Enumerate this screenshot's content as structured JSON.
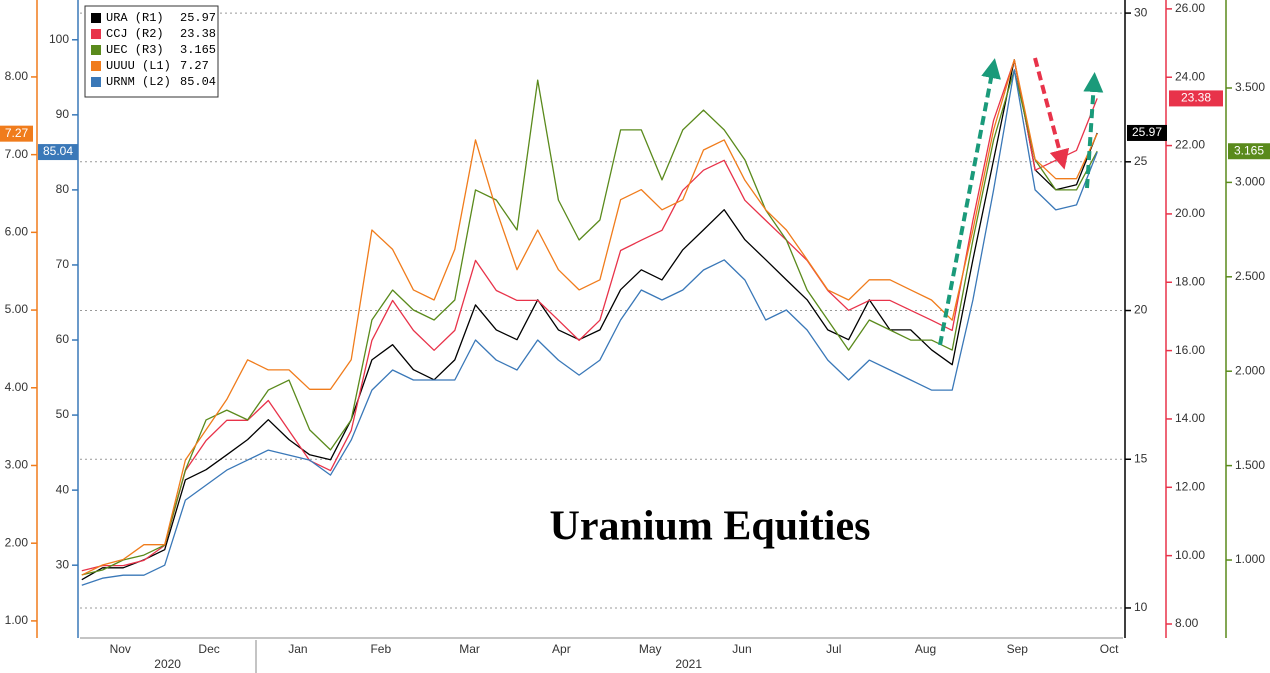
{
  "chart_data": {
    "type": "line",
    "annotation": "Uranium Equities",
    "x": [
      3,
      10,
      17,
      24,
      31,
      38,
      45,
      52,
      59,
      66,
      73,
      80,
      87,
      94,
      101,
      108,
      115,
      122,
      129,
      136,
      143,
      150,
      157,
      164,
      171,
      178,
      185,
      192,
      199,
      206,
      213,
      220,
      227,
      234,
      241,
      248,
      255,
      262,
      269,
      276,
      283,
      290,
      297,
      304,
      311,
      318,
      325,
      332,
      339,
      346
    ],
    "xlim": [
      2.4,
      354.7
    ],
    "xticks": [
      {
        "value": 16,
        "label": "Nov"
      },
      {
        "value": 46,
        "label": "Dec"
      },
      {
        "value": 76,
        "label": "Jan"
      },
      {
        "value": 104,
        "label": "Feb"
      },
      {
        "value": 134,
        "label": "Mar"
      },
      {
        "value": 165,
        "label": "Apr"
      },
      {
        "value": 195,
        "label": "May"
      },
      {
        "value": 226,
        "label": "Jun"
      },
      {
        "value": 257,
        "label": "Jul"
      },
      {
        "value": 288,
        "label": "Aug"
      },
      {
        "value": 319,
        "label": "Sep"
      },
      {
        "value": 350,
        "label": "Oct"
      }
    ],
    "year_labels": [
      {
        "value": 32,
        "label": "2020"
      },
      {
        "value": 208,
        "label": "2021"
      }
    ],
    "grid": true,
    "grid_axis": "R1",
    "axes": {
      "L1": {
        "color": "#f07c1c",
        "ylim": [
          0.78,
          8.99
        ],
        "yticks": [
          {
            "value": 1,
            "label": "1.00"
          },
          {
            "value": 2,
            "label": "2.00"
          },
          {
            "value": 3,
            "label": "3.00"
          },
          {
            "value": 4,
            "label": "4.00"
          },
          {
            "value": 5,
            "label": "5.00"
          },
          {
            "value": 6,
            "label": "6.00"
          },
          {
            "value": 7,
            "label": "7.00"
          },
          {
            "value": 8,
            "label": "8.00"
          }
        ]
      },
      "L2": {
        "color": "#3a78b8",
        "ylim": [
          20.3,
          105.3
        ],
        "yticks": [
          30,
          40,
          50,
          60,
          70,
          80,
          90,
          100
        ]
      },
      "R1": {
        "color": "#000000",
        "ylim": [
          8.99,
          30.44
        ],
        "yticks": [
          10,
          15,
          20,
          25,
          30
        ]
      },
      "R2": {
        "color": "#e8334a",
        "ylim": [
          7.59,
          26.26
        ],
        "yticks": [
          {
            "value": 8,
            "label": "8.00"
          },
          {
            "value": 10,
            "label": "10.00"
          },
          {
            "value": 12,
            "label": "12.00"
          },
          {
            "value": 14,
            "label": "14.00"
          },
          {
            "value": 16,
            "label": "16.00"
          },
          {
            "value": 18,
            "label": "18.00"
          },
          {
            "value": 20,
            "label": "20.00"
          },
          {
            "value": 22,
            "label": "22.00"
          },
          {
            "value": 24,
            "label": "24.00"
          },
          {
            "value": 26,
            "label": "26.00"
          }
        ]
      },
      "R3": {
        "color": "#5a8a1c",
        "ylim": [
          0.587,
          3.966
        ],
        "yticks": [
          {
            "value": 1,
            "label": "1.000"
          },
          {
            "value": 1.5,
            "label": "1.500"
          },
          {
            "value": 2,
            "label": "2.000"
          },
          {
            "value": 2.5,
            "label": "2.500"
          },
          {
            "value": 3,
            "label": "3.000"
          },
          {
            "value": 3.5,
            "label": "3.500"
          }
        ]
      }
    },
    "series": [
      {
        "name": "URA (R1)",
        "axis": "R1",
        "color": "#000000",
        "values": [
          10.95,
          11.35,
          11.35,
          11.62,
          11.96,
          14.31,
          14.65,
          15.15,
          15.66,
          16.33,
          15.66,
          15.15,
          14.98,
          16.33,
          18.34,
          18.85,
          18.01,
          17.67,
          18.34,
          20.19,
          19.35,
          19.02,
          20.36,
          19.35,
          19.02,
          19.35,
          20.7,
          21.37,
          21.03,
          22.04,
          22.71,
          23.39,
          22.38,
          21.71,
          21.03,
          20.36,
          19.35,
          19.02,
          20.36,
          19.35,
          19.35,
          18.68,
          18.18,
          21.71,
          25.07,
          28.43,
          24.73,
          24.06,
          24.23,
          25.97
        ]
      },
      {
        "name": "CCJ (R2)",
        "axis": "R2",
        "color": "#e8334a",
        "values": [
          9.56,
          9.71,
          9.71,
          9.86,
          10.3,
          12.49,
          13.37,
          13.96,
          13.96,
          14.54,
          13.66,
          12.78,
          12.49,
          13.66,
          16.3,
          17.47,
          16.59,
          16.01,
          16.59,
          18.64,
          17.76,
          17.47,
          17.47,
          16.89,
          16.3,
          16.89,
          18.93,
          19.23,
          19.52,
          20.69,
          21.28,
          21.57,
          20.4,
          19.81,
          19.23,
          18.64,
          17.76,
          17.18,
          17.47,
          17.47,
          17.18,
          16.89,
          16.59,
          19.81,
          22.74,
          24.5,
          21.28,
          21.57,
          21.86,
          23.38
        ]
      },
      {
        "name": "UEC (R3)",
        "axis": "R3",
        "color": "#5a8a1c",
        "values": [
          0.921,
          0.947,
          1.0,
          1.026,
          1.079,
          1.477,
          1.742,
          1.794,
          1.742,
          1.9,
          1.953,
          1.689,
          1.583,
          1.742,
          2.271,
          2.43,
          2.324,
          2.271,
          2.377,
          2.96,
          2.907,
          2.748,
          3.542,
          2.907,
          2.695,
          2.801,
          3.278,
          3.278,
          3.013,
          3.278,
          3.383,
          3.278,
          3.119,
          2.854,
          2.695,
          2.43,
          2.271,
          2.112,
          2.271,
          2.218,
          2.165,
          2.165,
          2.112,
          2.695,
          3.225,
          3.595,
          3.119,
          2.96,
          2.96,
          3.165
        ]
      },
      {
        "name": "UUUU (L1)",
        "axis": "L1",
        "color": "#f07c1c",
        "values": [
          1.59,
          1.72,
          1.79,
          1.98,
          1.98,
          3.07,
          3.46,
          3.85,
          4.36,
          4.23,
          4.23,
          3.98,
          3.98,
          4.36,
          6.03,
          5.78,
          5.26,
          5.13,
          5.78,
          7.19,
          6.29,
          5.52,
          6.03,
          5.52,
          5.26,
          5.39,
          6.42,
          6.55,
          6.29,
          6.42,
          7.06,
          7.19,
          6.67,
          6.29,
          6.03,
          5.65,
          5.26,
          5.13,
          5.39,
          5.39,
          5.26,
          5.13,
          4.87,
          6.03,
          7.32,
          8.22,
          6.94,
          6.69,
          6.69,
          7.27
        ]
      },
      {
        "name": "URNM (L2)",
        "axis": "L2",
        "color": "#3a78b8",
        "values": [
          27.33,
          28.27,
          28.67,
          28.67,
          30.0,
          38.67,
          40.67,
          42.67,
          44.0,
          45.33,
          44.67,
          44.0,
          42.0,
          46.67,
          53.33,
          56.0,
          54.67,
          54.67,
          54.67,
          60.0,
          57.33,
          56.0,
          60.0,
          57.33,
          55.33,
          57.33,
          62.67,
          66.67,
          65.33,
          66.67,
          69.33,
          70.67,
          68.0,
          62.67,
          64.0,
          61.33,
          57.33,
          54.67,
          57.33,
          56.0,
          54.67,
          53.33,
          53.33,
          65.33,
          80.0,
          96.0,
          80.0,
          77.33,
          78.0,
          85.04
        ]
      }
    ]
  }
}
